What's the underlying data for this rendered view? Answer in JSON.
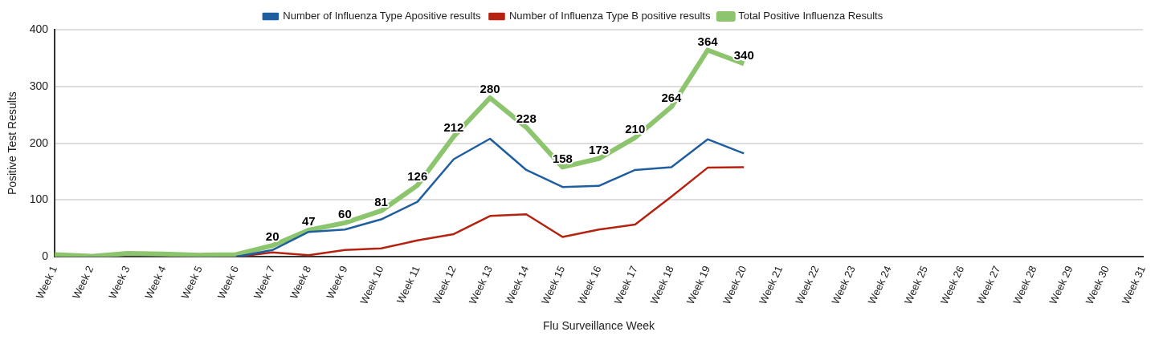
{
  "chart_data": {
    "type": "line",
    "xlabel": "Flu Surveillance Week",
    "ylabel": "Positive Test Results",
    "categories": [
      "Week 1",
      "Week 2",
      "Week 3",
      "Week 4",
      "Week 5",
      "Week 6",
      "Week 7",
      "Week 8",
      "Week 9",
      "Week 10",
      "Week 11",
      "Week 12",
      "Week 13",
      "Week 14",
      "Week 15",
      "Week 16",
      "Week 17",
      "Week 18",
      "Week 19",
      "Week 20",
      "Week 21",
      "Week 22",
      "Week 23",
      "Week 24",
      "Week 25",
      "Week 26",
      "Week 27",
      "Week 28",
      "Week 29",
      "Week 30",
      "Week 31"
    ],
    "series": [
      {
        "name": "Number of Influenza Type Apositive results",
        "color": "#1f5fa0",
        "values": [
          null,
          null,
          null,
          null,
          null,
          0,
          12,
          44,
          48,
          66,
          97,
          172,
          208,
          153,
          123,
          125,
          153,
          158,
          207,
          182,
          null,
          null,
          null,
          null,
          null,
          null,
          null,
          null,
          null,
          null,
          null
        ]
      },
      {
        "name": "Number of Influenza Type B positive results",
        "color": "#b5220f",
        "values": [
          null,
          null,
          null,
          null,
          null,
          0,
          8,
          3,
          12,
          15,
          29,
          40,
          72,
          75,
          35,
          48,
          57,
          106,
          157,
          158,
          null,
          null,
          null,
          null,
          null,
          null,
          null,
          null,
          null,
          null,
          null
        ]
      },
      {
        "name": "Total Positive Influenza Results",
        "color": "#8cc56e",
        "values": [
          4,
          1,
          6,
          5,
          3,
          4,
          20,
          47,
          60,
          81,
          126,
          212,
          280,
          228,
          158,
          173,
          210,
          264,
          364,
          340,
          null,
          null,
          null,
          null,
          null,
          null,
          null,
          null,
          null,
          null,
          null
        ],
        "value_labels": [
          null,
          null,
          null,
          null,
          null,
          null,
          "20",
          "47",
          "60",
          "81",
          "126",
          "212",
          "280",
          "228",
          "158",
          "173",
          "210",
          "264",
          "364",
          "340",
          null,
          null,
          null,
          null,
          null,
          null,
          null,
          null,
          null,
          null,
          null
        ]
      }
    ],
    "ylim": [
      0,
      400
    ],
    "yticks": [
      0,
      100,
      200,
      300,
      400
    ],
    "grid": "y",
    "legend": "top",
    "marker": "none",
    "line_style": "solid"
  }
}
